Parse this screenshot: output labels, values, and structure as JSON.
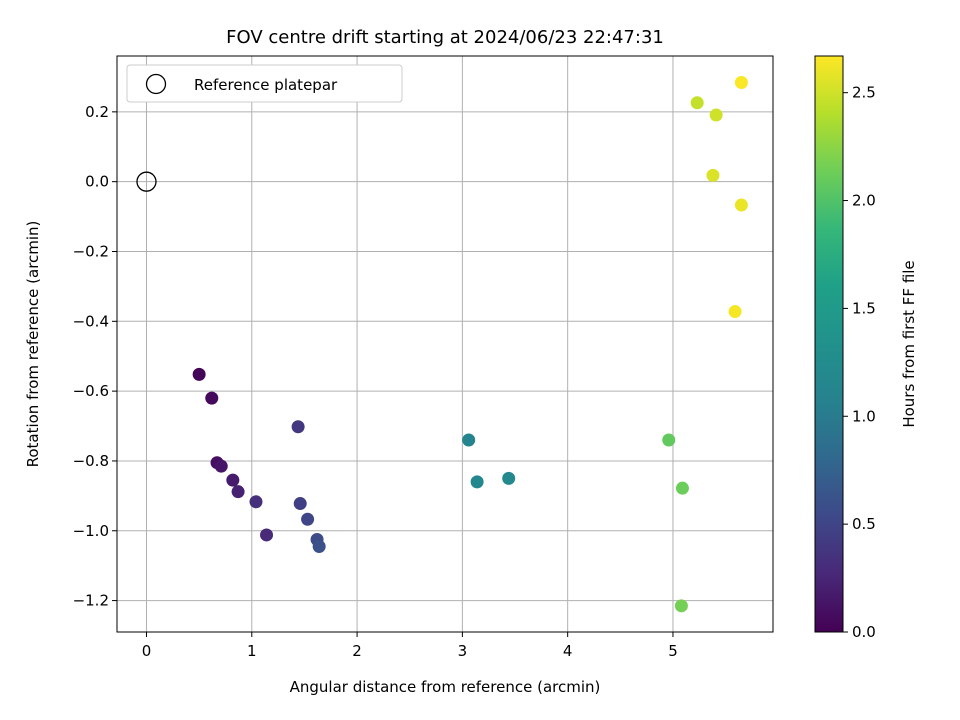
{
  "chart_data": {
    "type": "scatter",
    "title": "FOV centre drift starting at 2024/06/23 22:47:31",
    "xlabel": "Angular distance from reference (arcmin)",
    "ylabel": "Rotation from reference (arcmin)",
    "xlim": [
      -0.28,
      5.95
    ],
    "ylim": [
      -1.29,
      0.36
    ],
    "xticks": [
      0,
      1,
      2,
      3,
      4,
      5
    ],
    "xtick_labels": [
      "0",
      "1",
      "2",
      "3",
      "4",
      "5"
    ],
    "yticks": [
      0.2,
      0.0,
      -0.2,
      -0.4,
      -0.6,
      -0.8,
      -1.0,
      -1.2
    ],
    "ytick_labels": [
      "0.2",
      "0.0",
      "−0.2",
      "−0.4",
      "−0.6",
      "−0.8",
      "−1.0",
      "−1.2"
    ],
    "grid": true,
    "legend": {
      "position": "top-left",
      "entries": [
        "Reference platepar"
      ]
    },
    "reference_point": {
      "x": 0.0,
      "y": 0.0
    },
    "colorbar": {
      "label": "Hours from first FF file",
      "colormap": "viridis",
      "range": [
        0.0,
        2.67
      ],
      "ticks": [
        0.0,
        0.5,
        1.0,
        1.5,
        2.0,
        2.5
      ],
      "tick_labels": [
        "0.0",
        "0.5",
        "1.0",
        "1.5",
        "2.0",
        "2.5"
      ]
    },
    "points": [
      {
        "x": 0.5,
        "y": -0.552,
        "c": 0.02
      },
      {
        "x": 0.62,
        "y": -0.62,
        "c": 0.06
      },
      {
        "x": 0.67,
        "y": -0.805,
        "c": 0.1
      },
      {
        "x": 0.71,
        "y": -0.815,
        "c": 0.14
      },
      {
        "x": 0.82,
        "y": -0.855,
        "c": 0.18
      },
      {
        "x": 0.87,
        "y": -0.888,
        "c": 0.22
      },
      {
        "x": 1.14,
        "y": -1.012,
        "c": 0.28
      },
      {
        "x": 1.04,
        "y": -0.917,
        "c": 0.33
      },
      {
        "x": 1.44,
        "y": -0.702,
        "c": 0.4
      },
      {
        "x": 1.46,
        "y": -0.922,
        "c": 0.45
      },
      {
        "x": 1.53,
        "y": -0.967,
        "c": 0.5
      },
      {
        "x": 1.62,
        "y": -1.025,
        "c": 0.55
      },
      {
        "x": 1.64,
        "y": -1.045,
        "c": 0.6
      },
      {
        "x": 3.06,
        "y": -0.74,
        "c": 1.1
      },
      {
        "x": 3.14,
        "y": -0.86,
        "c": 1.15
      },
      {
        "x": 3.44,
        "y": -0.85,
        "c": 1.2
      },
      {
        "x": 4.96,
        "y": -0.74,
        "c": 2.08
      },
      {
        "x": 5.09,
        "y": -0.878,
        "c": 2.12
      },
      {
        "x": 5.08,
        "y": -1.215,
        "c": 2.16
      },
      {
        "x": 5.59,
        "y": -0.372,
        "c": 2.64
      },
      {
        "x": 5.65,
        "y": -0.067,
        "c": 2.6
      },
      {
        "x": 5.38,
        "y": 0.018,
        "c": 2.54
      },
      {
        "x": 5.41,
        "y": 0.191,
        "c": 2.5
      },
      {
        "x": 5.23,
        "y": 0.226,
        "c": 2.46
      },
      {
        "x": 5.65,
        "y": 0.284,
        "c": 2.66
      }
    ]
  }
}
